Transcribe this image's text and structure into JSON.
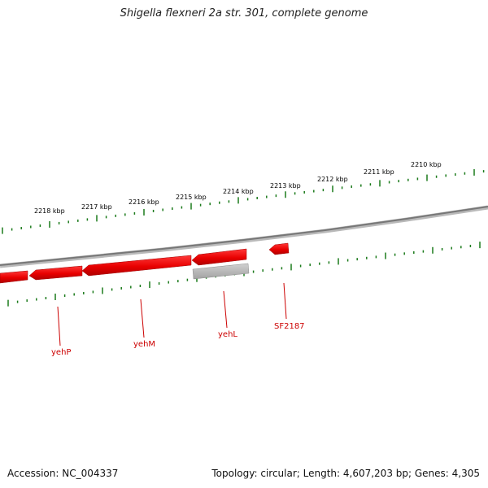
{
  "title": "Shigella flexneri 2a str. 301, complete genome",
  "footer": {
    "accession": "Accession: NC_004337",
    "summary": "Topology: circular; Length: 4,607,203 bp; Genes: 4,305"
  },
  "colors": {
    "gene_red": "#ee0000",
    "gene_gray": "#b0b0b0",
    "backbone": "#7a7a7a",
    "ticks": "#1a7a1a",
    "label_red": "#cc0000"
  },
  "scale_labels": [
    "2218 kbp",
    "2217 kbp",
    "2216 kbp",
    "2215 kbp",
    "2214 kbp",
    "2213 kbp",
    "2212 kbp",
    "2211 kbp",
    "2210 kbp"
  ],
  "genes": [
    {
      "label": "",
      "strand": "reverse",
      "color": "red"
    },
    {
      "label": "yehP",
      "strand": "reverse",
      "color": "red"
    },
    {
      "label": "yehM",
      "strand": "reverse",
      "color": "red"
    },
    {
      "label": "yehL",
      "strand": "reverse",
      "color": "red"
    },
    {
      "label": "",
      "strand": "none",
      "color": "gray"
    },
    {
      "label": "SF2187",
      "strand": "reverse",
      "color": "red"
    }
  ]
}
